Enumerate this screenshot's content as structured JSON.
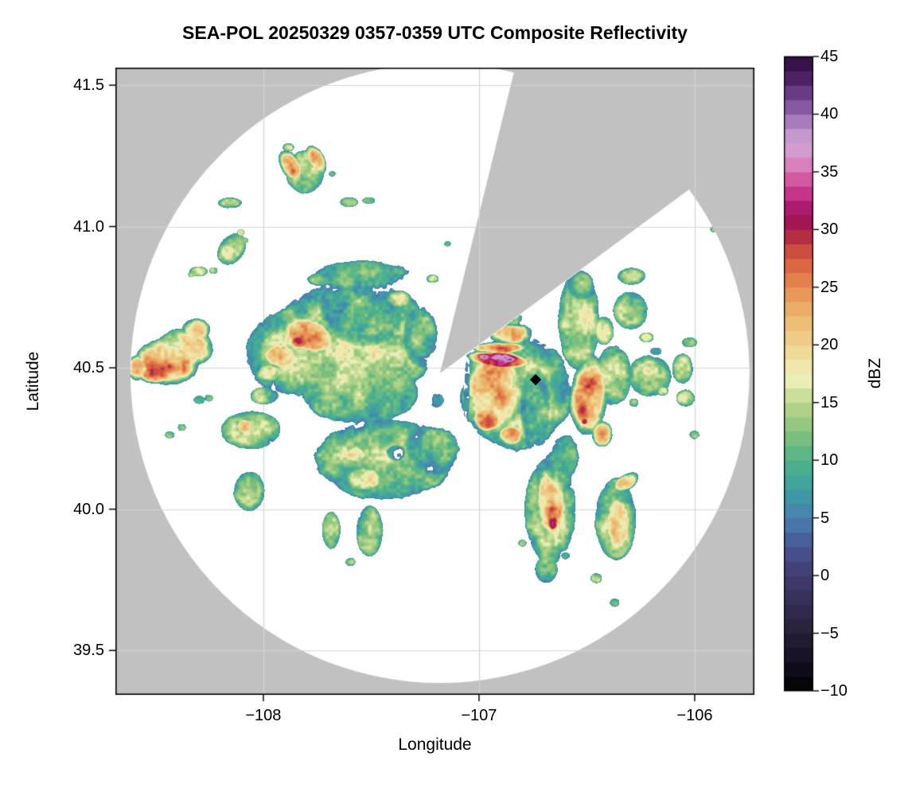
{
  "figure": {
    "title": "SEA-POL 20250329 0357-0359 UTC Composite Reflectivity",
    "background_color": "#ffffff",
    "no_coverage_color": "#c1c1c1",
    "grid_color": "#d4d4d4",
    "axis_color": "#000000"
  },
  "chart_data": {
    "type": "heatmap",
    "title": "SEA-POL 20250329 0357-0359 UTC Composite Reflectivity",
    "xlabel": "Longitude",
    "ylabel": "Latitude",
    "xlim": [
      -108.686,
      -105.723
    ],
    "ylim": [
      39.343,
      41.562
    ],
    "grid": true,
    "x_ticks": [
      {
        "value": -108,
        "label": "−108"
      },
      {
        "value": -107,
        "label": "−107"
      },
      {
        "value": -106,
        "label": "−106"
      }
    ],
    "y_ticks": [
      {
        "value": 41.5,
        "label": "41.5"
      },
      {
        "value": 41.0,
        "label": "41.0"
      },
      {
        "value": 40.5,
        "label": "40.5"
      },
      {
        "value": 40.0,
        "label": "40.0"
      },
      {
        "value": 39.5,
        "label": "39.5"
      }
    ],
    "colorbar": {
      "label": "dBZ",
      "vmin": -10,
      "vmax": 45,
      "segment_step": 1.25,
      "ticks": [
        {
          "value": 45,
          "label": "45"
        },
        {
          "value": 40,
          "label": "40"
        },
        {
          "value": 35,
          "label": "35"
        },
        {
          "value": 30,
          "label": "30"
        },
        {
          "value": 25,
          "label": "25"
        },
        {
          "value": 20,
          "label": "20"
        },
        {
          "value": 15,
          "label": "15"
        },
        {
          "value": 10,
          "label": "10"
        },
        {
          "value": 5,
          "label": "5"
        },
        {
          "value": 0,
          "label": "0"
        },
        {
          "value": -5,
          "label": "−5"
        },
        {
          "value": -10,
          "label": "−10"
        }
      ]
    },
    "colormap_stops": [
      [
        -10.0,
        "#000000"
      ],
      [
        -7.5,
        "#150f21"
      ],
      [
        -5.0,
        "#261f37"
      ],
      [
        -2.5,
        "#342e54"
      ],
      [
        0.0,
        "#413c70"
      ],
      [
        2.5,
        "#475591"
      ],
      [
        5.0,
        "#4a7fb2"
      ],
      [
        7.5,
        "#3da0a2"
      ],
      [
        10.0,
        "#4fb289"
      ],
      [
        12.5,
        "#86c37c"
      ],
      [
        15.0,
        "#bcd78c"
      ],
      [
        17.0,
        "#ecefba"
      ],
      [
        18.75,
        "#f0e2a2"
      ],
      [
        20.0,
        "#eed28e"
      ],
      [
        22.5,
        "#ecb76e"
      ],
      [
        25.0,
        "#e68e52"
      ],
      [
        26.25,
        "#df7446"
      ],
      [
        27.5,
        "#d55c42"
      ],
      [
        28.75,
        "#c33f40"
      ],
      [
        30.0,
        "#a81a45"
      ],
      [
        31.25,
        "#99105c"
      ],
      [
        32.5,
        "#c02480"
      ],
      [
        33.75,
        "#cc4594"
      ],
      [
        35.0,
        "#d76fae"
      ],
      [
        36.25,
        "#d892c6"
      ],
      [
        37.5,
        "#cfa3d4"
      ],
      [
        38.75,
        "#b98fca"
      ],
      [
        40.0,
        "#9368ae"
      ],
      [
        41.25,
        "#774b92"
      ],
      [
        42.5,
        "#5a2a72"
      ],
      [
        43.75,
        "#411755"
      ],
      [
        45.0,
        "#2c0a3d"
      ]
    ],
    "radar": {
      "lon": -107.181,
      "lat": 40.481,
      "coverage_radius_deg_lon": 1.435,
      "coverage_radius_deg_lat": 1.096,
      "blocked_sector_azimuth_deg": [
        13.8,
        53.6
      ]
    },
    "marker": {
      "lon": -106.738,
      "lat": 40.458,
      "shape": "diamond",
      "color": "#000000"
    },
    "echo_threshold_dbz": 4.3,
    "echo_blobs": {
      "columns": [
        "lon",
        "lat",
        "rx_deg",
        "ry_deg",
        "rot_deg",
        "core_dbz",
        "dip"
      ],
      "rows": [
        [
          -108.445,
          40.52,
          0.17,
          0.093,
          0,
          26
        ],
        [
          -108.434,
          40.503,
          0.081,
          0.039,
          0,
          30
        ],
        [
          -108.496,
          40.477,
          0.096,
          0.039,
          0,
          28
        ],
        [
          -108.363,
          40.57,
          0.148,
          0.079,
          0,
          20
        ],
        [
          -108.312,
          40.635,
          0.074,
          0.045,
          0,
          21
        ],
        [
          -108.585,
          40.5,
          0.052,
          0.051,
          0,
          22
        ],
        [
          -108.155,
          41.083,
          0.063,
          0.022,
          0,
          17
        ],
        [
          -108.146,
          40.92,
          0.066,
          0.068,
          35,
          17
        ],
        [
          -108.105,
          40.979,
          0.018,
          0.014,
          0,
          22
        ],
        [
          -108.083,
          40.951,
          0.015,
          0.011,
          0,
          11
        ],
        [
          -108.301,
          40.841,
          0.048,
          0.02,
          0,
          15.5
        ],
        [
          -108.231,
          40.844,
          0.022,
          0.014,
          0,
          14
        ],
        [
          -108.334,
          40.83,
          0.018,
          0.011,
          0,
          14
        ],
        [
          -107.873,
          41.215,
          0.052,
          0.068,
          -32,
          26
        ],
        [
          -107.862,
          41.198,
          0.026,
          0.023,
          0,
          30
        ],
        [
          -107.755,
          41.235,
          0.044,
          0.062,
          -28,
          22
        ],
        [
          -107.806,
          41.193,
          0.1,
          0.085,
          0,
          16
        ],
        [
          -107.884,
          41.28,
          0.03,
          0.017,
          0,
          18
        ],
        [
          -107.681,
          41.187,
          0.018,
          0.011,
          0,
          13
        ],
        [
          -107.603,
          41.086,
          0.048,
          0.02,
          0,
          16
        ],
        [
          -107.511,
          41.092,
          0.033,
          0.014,
          0,
          15
        ],
        [
          -107.578,
          40.59,
          0.424,
          0.248,
          0,
          15.5
        ],
        [
          -107.847,
          40.556,
          0.266,
          0.175,
          0,
          15
        ],
        [
          -107.552,
          40.832,
          0.339,
          0.073,
          0,
          12.5,
          1
        ],
        [
          -107.625,
          40.723,
          0.122,
          0.087,
          0,
          8.2,
          1
        ],
        [
          -107.618,
          40.714,
          0.074,
          0.051,
          0,
          7.2,
          1
        ],
        [
          -107.53,
          40.68,
          0.177,
          0.107,
          0,
          11,
          1
        ],
        [
          -107.788,
          40.615,
          0.162,
          0.073,
          20,
          25
        ],
        [
          -107.832,
          40.593,
          0.055,
          0.031,
          0,
          29
        ],
        [
          -107.921,
          40.542,
          0.096,
          0.054,
          0,
          24
        ],
        [
          -107.972,
          40.483,
          0.074,
          0.039,
          0,
          20
        ],
        [
          -107.375,
          40.742,
          0.07,
          0.037,
          0,
          20
        ],
        [
          -107.552,
          40.415,
          0.303,
          0.13,
          0,
          13.5
        ],
        [
          -107.994,
          40.401,
          0.074,
          0.034,
          0,
          12
        ],
        [
          -107.256,
          40.613,
          0.096,
          0.118,
          0,
          10.5,
          1
        ],
        [
          -107.216,
          40.815,
          0.033,
          0.017,
          0,
          20
        ],
        [
          -107.448,
          40.844,
          0.111,
          0.039,
          0,
          13,
          1
        ],
        [
          -107.736,
          40.815,
          0.092,
          0.034,
          0,
          12.5,
          1
        ],
        [
          -107.441,
          40.176,
          0.358,
          0.161,
          0,
          14.5
        ],
        [
          -108.057,
          40.28,
          0.155,
          0.076,
          0,
          15.5
        ],
        [
          -108.087,
          40.294,
          0.044,
          0.031,
          0,
          25
        ],
        [
          -108.065,
          40.063,
          0.081,
          0.079,
          0,
          16.5
        ],
        [
          -108.297,
          40.387,
          0.03,
          0.017,
          0,
          13.5
        ],
        [
          -108.253,
          40.393,
          0.022,
          0.014,
          0,
          14.5
        ],
        [
          -108.378,
          40.289,
          0.022,
          0.014,
          0,
          15
        ],
        [
          -108.434,
          40.263,
          0.026,
          0.014,
          0,
          12.5
        ],
        [
          -107.533,
          40.108,
          0.107,
          0.054,
          0,
          21
        ],
        [
          -107.57,
          40.193,
          0.059,
          0.037,
          0,
          20
        ],
        [
          -107.386,
          40.199,
          0.044,
          0.028,
          0,
          5,
          1
        ],
        [
          -107.186,
          40.221,
          0.155,
          0.101,
          0,
          10.5,
          1
        ],
        [
          -107.197,
          40.385,
          0.055,
          0.042,
          0,
          7.5,
          1
        ],
        [
          -107.124,
          40.227,
          0.03,
          0.023,
          0,
          4.6,
          1
        ],
        [
          -107.507,
          39.923,
          0.07,
          0.101,
          0,
          14
        ],
        [
          -107.685,
          39.925,
          0.048,
          0.073,
          0,
          13.5
        ],
        [
          -107.596,
          39.813,
          0.026,
          0.017,
          0,
          15
        ],
        [
          -106.828,
          40.415,
          0.288,
          0.231,
          0,
          14.8
        ],
        [
          -106.924,
          40.421,
          0.17,
          0.175,
          0,
          24.5
        ],
        [
          -106.902,
          40.528,
          0.17,
          0.037,
          5,
          33
        ],
        [
          -106.906,
          40.537,
          0.148,
          0.023,
          5,
          38
        ],
        [
          -106.972,
          40.539,
          0.048,
          0.017,
          0,
          43
        ],
        [
          -106.854,
          40.528,
          0.041,
          0.014,
          0,
          42
        ],
        [
          -106.902,
          40.57,
          0.14,
          0.025,
          0,
          29
        ],
        [
          -106.854,
          40.621,
          0.118,
          0.045,
          0,
          24
        ],
        [
          -106.847,
          40.675,
          0.081,
          0.031,
          0,
          14,
          1
        ],
        [
          -106.961,
          40.32,
          0.081,
          0.054,
          0,
          28
        ],
        [
          -106.854,
          40.261,
          0.07,
          0.042,
          0,
          26
        ],
        [
          -107.057,
          40.444,
          0.015,
          0.135,
          0,
          5,
          1
        ],
        [
          -106.74,
          40.359,
          0.07,
          0.146,
          0,
          10.5,
          1
        ],
        [
          -106.751,
          40.275,
          0.041,
          0.062,
          0,
          8,
          1
        ],
        [
          -106.537,
          40.669,
          0.107,
          0.203,
          0,
          15.2
        ],
        [
          -106.522,
          40.799,
          0.07,
          0.059,
          0,
          12,
          1
        ],
        [
          -106.544,
          40.866,
          0.037,
          0.023,
          0,
          12.5
        ],
        [
          -106.422,
          40.632,
          0.052,
          0.056,
          0,
          15
        ],
        [
          -106.297,
          40.703,
          0.089,
          0.076,
          0,
          15
        ],
        [
          -106.293,
          40.824,
          0.074,
          0.034,
          0,
          15.5
        ],
        [
          -106.179,
          40.559,
          0.044,
          0.023,
          0,
          12.5,
          1
        ],
        [
          -106.223,
          40.607,
          0.037,
          0.02,
          0,
          16
        ],
        [
          -106.489,
          40.401,
          0.1,
          0.161,
          5,
          26.5
        ],
        [
          -106.515,
          40.348,
          0.048,
          0.065,
          0,
          30
        ],
        [
          -106.511,
          40.311,
          0.022,
          0.017,
          0,
          33
        ],
        [
          -106.378,
          40.472,
          0.096,
          0.118,
          0,
          16
        ],
        [
          -106.43,
          40.266,
          0.055,
          0.051,
          0,
          22
        ],
        [
          -106.208,
          40.472,
          0.114,
          0.082,
          0,
          16.5
        ],
        [
          -106.223,
          40.489,
          0.033,
          0.023,
          0,
          20
        ],
        [
          -106.149,
          40.418,
          0.03,
          0.02,
          0,
          20
        ],
        [
          -106.282,
          40.376,
          0.033,
          0.023,
          0,
          12.5,
          1
        ],
        [
          -106.057,
          40.497,
          0.055,
          0.059,
          0,
          16
        ],
        [
          -106.042,
          40.393,
          0.048,
          0.034,
          0,
          16.5
        ],
        [
          -106.002,
          40.263,
          0.026,
          0.017,
          0,
          15
        ],
        [
          -106.024,
          40.59,
          0.041,
          0.02,
          0,
          15
        ],
        [
          -106.603,
          40.185,
          0.1,
          0.13,
          0,
          11.5,
          1
        ],
        [
          -106.607,
          40.19,
          0.063,
          0.099,
          0,
          8.2,
          1
        ],
        [
          -106.607,
          40.204,
          0.041,
          0.065,
          0,
          7.2,
          1
        ],
        [
          -106.67,
          39.996,
          0.133,
          0.214,
          0,
          14
        ],
        [
          -106.666,
          40.032,
          0.085,
          0.158,
          0,
          24.5
        ],
        [
          -106.666,
          39.996,
          0.048,
          0.073,
          0,
          28.5
        ],
        [
          -106.659,
          39.954,
          0.033,
          0.037,
          0,
          32
        ],
        [
          -106.688,
          39.785,
          0.059,
          0.054,
          0,
          13
        ],
        [
          -106.596,
          39.835,
          0.03,
          0.02,
          0,
          12,
          1
        ],
        [
          -106.799,
          39.88,
          0.022,
          0.014,
          0,
          14
        ],
        [
          -106.367,
          39.965,
          0.107,
          0.161,
          0,
          15
        ],
        [
          -106.356,
          39.951,
          0.07,
          0.124,
          0,
          22.5
        ],
        [
          -106.367,
          39.937,
          0.041,
          0.059,
          0,
          26
        ],
        [
          -106.319,
          40.094,
          0.077,
          0.031,
          -35,
          19
        ],
        [
          -106.456,
          39.756,
          0.03,
          0.02,
          0,
          15.5
        ],
        [
          -106.371,
          39.669,
          0.026,
          0.017,
          0,
          15.5
        ],
        [
          -107.135,
          40.241,
          0.033,
          0.02,
          0,
          5
        ],
        [
          -107.105,
          40.213,
          0.018,
          0.011,
          0,
          4.8
        ],
        [
          -107.006,
          40.317,
          0.015,
          0.011,
          0,
          4.6
        ],
        [
          -107.146,
          40.939,
          0.018,
          0.011,
          0,
          11
        ],
        [
          -105.913,
          40.99,
          0.018,
          0.011,
          0,
          11.5
        ]
      ]
    }
  }
}
